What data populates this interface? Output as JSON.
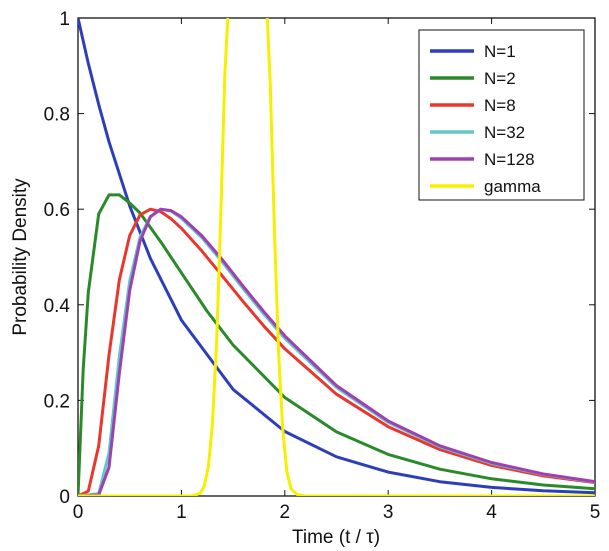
{
  "chart_data": {
    "type": "line",
    "title": "",
    "xlabel": "Time (t / τ)",
    "ylabel": "Probability Density",
    "xlim": [
      0,
      5
    ],
    "ylim": [
      0,
      1
    ],
    "xticks": [
      "0",
      "1",
      "2",
      "3",
      "4",
      "5"
    ],
    "yticks": [
      "0",
      "0.2",
      "0.4",
      "0.6",
      "0.8",
      "1"
    ],
    "grid": false,
    "legend_position": "top-right",
    "series": [
      {
        "name": "N=1",
        "color": "#2d3fb8",
        "x": [
          0,
          0.1,
          0.2,
          0.3,
          0.5,
          0.7,
          1.0,
          1.5,
          2.0,
          2.5,
          3.0,
          3.5,
          4.0,
          4.5,
          5.0
        ],
        "y": [
          1.0,
          0.905,
          0.819,
          0.741,
          0.607,
          0.497,
          0.368,
          0.223,
          0.135,
          0.082,
          0.05,
          0.03,
          0.018,
          0.011,
          0.007
        ]
      },
      {
        "name": "N=2",
        "color": "#2a8a2a",
        "x": [
          0,
          0.05,
          0.1,
          0.2,
          0.3,
          0.4,
          0.5,
          0.6,
          0.8,
          1.0,
          1.25,
          1.5,
          2.0,
          2.5,
          3.0,
          3.5,
          4.0,
          4.5,
          5.0
        ],
        "y": [
          0.0,
          0.265,
          0.426,
          0.59,
          0.63,
          0.63,
          0.613,
          0.592,
          0.532,
          0.467,
          0.386,
          0.316,
          0.206,
          0.134,
          0.087,
          0.056,
          0.036,
          0.023,
          0.015
        ]
      },
      {
        "name": "N=8",
        "color": "#e8382e",
        "x": [
          0,
          0.1,
          0.2,
          0.3,
          0.4,
          0.5,
          0.6,
          0.7,
          0.8,
          0.9,
          1.0,
          1.2,
          1.4,
          1.6,
          1.8,
          2.0,
          2.5,
          3.0,
          3.5,
          4.0,
          4.5,
          5.0
        ],
        "y": [
          0.0,
          0.01,
          0.105,
          0.295,
          0.453,
          0.545,
          0.588,
          0.6,
          0.595,
          0.58,
          0.56,
          0.512,
          0.459,
          0.406,
          0.355,
          0.308,
          0.213,
          0.145,
          0.097,
          0.064,
          0.042,
          0.028
        ]
      },
      {
        "name": "N=32",
        "color": "#5fc8c8",
        "x": [
          0,
          0.2,
          0.3,
          0.4,
          0.5,
          0.6,
          0.7,
          0.8,
          0.9,
          1.0,
          1.2,
          1.4,
          1.6,
          1.8,
          2.0,
          2.5,
          3.0,
          3.5,
          4.0,
          4.5,
          5.0
        ],
        "y": [
          0.0,
          0.005,
          0.09,
          0.293,
          0.45,
          0.541,
          0.585,
          0.6,
          0.596,
          0.581,
          0.54,
          0.488,
          0.433,
          0.38,
          0.33,
          0.227,
          0.154,
          0.103,
          0.068,
          0.045,
          0.029
        ]
      },
      {
        "name": "N=128",
        "color": "#a040b0",
        "x": [
          0,
          0.2,
          0.3,
          0.4,
          0.5,
          0.6,
          0.7,
          0.8,
          0.9,
          1.0,
          1.2,
          1.4,
          1.6,
          1.8,
          2.0,
          2.5,
          3.0,
          3.5,
          4.0,
          4.5,
          5.0
        ],
        "y": [
          0.0,
          0.002,
          0.06,
          0.258,
          0.43,
          0.533,
          0.584,
          0.6,
          0.597,
          0.584,
          0.544,
          0.493,
          0.438,
          0.385,
          0.335,
          0.231,
          0.157,
          0.105,
          0.07,
          0.046,
          0.03
        ]
      },
      {
        "name": "gamma",
        "color": "#f5f000",
        "x": [
          0,
          1.1,
          1.18,
          1.22,
          1.26,
          1.3,
          1.34,
          1.38,
          1.42,
          1.46,
          1.82,
          1.86,
          1.9,
          1.94,
          1.98,
          2.02,
          2.06,
          2.12,
          2.2,
          5.0
        ],
        "y": [
          0.0,
          0.0,
          0.005,
          0.02,
          0.06,
          0.15,
          0.32,
          0.58,
          0.88,
          1.05,
          1.05,
          0.86,
          0.55,
          0.3,
          0.14,
          0.05,
          0.015,
          0.003,
          0.0,
          0.0
        ]
      }
    ]
  }
}
